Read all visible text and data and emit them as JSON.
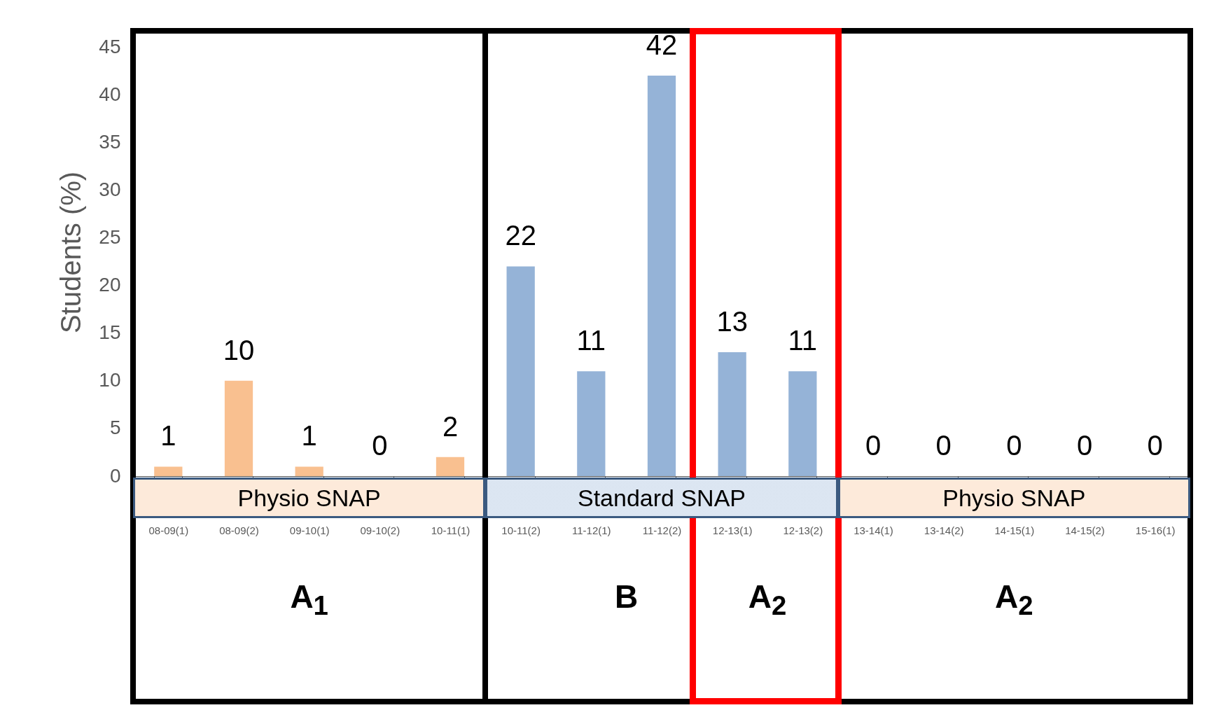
{
  "chart_data": {
    "type": "bar",
    "ylabel": "Students (%)",
    "categories": [
      "08-09(1)",
      "08-09(2)",
      "09-10(1)",
      "09-10(2)",
      "10-11(1)",
      "10-11(2)",
      "11-12(1)",
      "11-12(2)",
      "12-13(1)",
      "12-13(2)",
      "13-14(1)",
      "13-14(2)",
      "14-15(1)",
      "14-15(2)",
      "15-16(1)"
    ],
    "values": [
      1,
      10,
      1,
      0,
      2,
      22,
      11,
      42,
      13,
      11,
      0,
      0,
      0,
      0,
      0
    ],
    "colors": [
      "#f9c090",
      "#f9c090",
      "#f9c090",
      "#f9c090",
      "#f9c090",
      "#95b3d7",
      "#95b3d7",
      "#95b3d7",
      "#95b3d7",
      "#95b3d7",
      "#f9c090",
      "#f9c090",
      "#f9c090",
      "#f9c090",
      "#f9c090"
    ],
    "ylim": [
      0,
      47
    ],
    "yticks": [
      0,
      5,
      10,
      15,
      20,
      25,
      30,
      35,
      40,
      45
    ],
    "data_labels": true,
    "annotations": [
      "Physio SNAP",
      "Standard SNAP",
      "Physio SNAP",
      "A$_{1}$",
      "B",
      "A$_{2}$",
      "A$_{2}$"
    ]
  }
}
